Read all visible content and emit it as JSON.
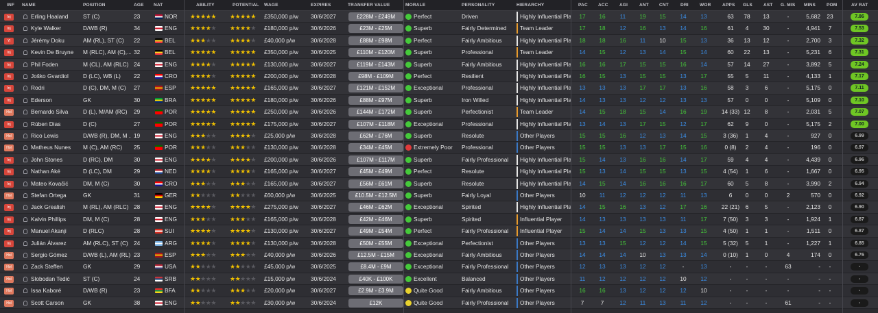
{
  "headers": {
    "inf": "INF",
    "name": "NAME",
    "position": "POSITION",
    "age": "AGE",
    "nat": "NAT",
    "ability": "ABILITY",
    "potential": "POTENTIAL",
    "wage": "WAGE",
    "expires": "EXPIRES",
    "transfer_value": "TRANSFER VALUE",
    "morale": "MORALE",
    "personality": "PERSONALITY",
    "hierarchy": "HIERARCHY",
    "pac": "PAC",
    "acc": "ACC",
    "agi": "AGI",
    "ant": "ANT",
    "cnt": "CNT",
    "dri": "DRI",
    "wor": "WOR",
    "apps": "APPS",
    "gls": "GLS",
    "ast": "AST",
    "gmis": "G. MIS",
    "mins": "MINS",
    "pom": "POM",
    "avrat": "AV RAT"
  },
  "colors": {
    "attr_green": "#45c93a",
    "attr_blue": "#3a8ee8",
    "attr_red": "#e03a3a",
    "attr_white": "#e6e6e6",
    "rating_green": "#6fc624",
    "rating_dark": "#1a1a1a",
    "hier_white": "#e6e6e6",
    "hier_orange": "#e89b2d",
    "hier_blue": "#3a79c6"
  },
  "players": [
    {
      "inf": "Inj",
      "name": "Erling Haaland",
      "position": "ST (C)",
      "age": "23",
      "nat": "NOR",
      "ability": 5,
      "potential": 5,
      "wage": "£350,000 p/w",
      "expires": "30/6/2027",
      "tv": "£228M - £249M",
      "morale": "Perfect",
      "personality": "Driven",
      "hierarchy": "Highly Influential Player",
      "hier": "white",
      "attrs": [
        "17",
        "16",
        "11",
        "19",
        "15",
        "14",
        "13"
      ],
      "apps": "63",
      "gls": "78",
      "ast": "13",
      "gmis": "-",
      "mins": "5,682",
      "pom": "23",
      "rating": "7.86",
      "rgreen": true
    },
    {
      "inf": "Inj",
      "name": "Kyle Walker",
      "position": "D/WB (R)",
      "age": "34",
      "nat": "ENG",
      "ability": 4,
      "potential": 4,
      "wage": "£180,000 p/w",
      "expires": "30/6/2026",
      "tv": "£23M - £25M",
      "morale": "Superb",
      "personality": "Fairly Determined",
      "hierarchy": "Team Leader",
      "hier": "orange",
      "attrs": [
        "17",
        "18",
        "12",
        "16",
        "13",
        "14",
        "16"
      ],
      "apps": "61",
      "gls": "4",
      "ast": "30",
      "gmis": "-",
      "mins": "4,941",
      "pom": "7",
      "rating": "7.53",
      "rgreen": true
    },
    {
      "inf": "Yl",
      "name": "Jérémy Doku",
      "position": "AM (RL), ST (C)",
      "age": "22",
      "nat": "BEL",
      "ability": 3,
      "potential": 4,
      "wage": "£40,000 p/w",
      "expires": "30/6/2028",
      "tv": "£88M - £98M",
      "morale": "Perfect",
      "personality": "Fairly Ambitious",
      "hierarchy": "Highly Influential Player",
      "hier": "white",
      "attrs": [
        "18",
        "18",
        "16",
        "11",
        "10",
        "15",
        "13"
      ],
      "apps": "36",
      "gls": "13",
      "ast": "12",
      "gmis": "-",
      "mins": "2,700",
      "pom": "3",
      "rating": "7.32",
      "rgreen": true
    },
    {
      "inf": "Inj",
      "name": "Kevin De Bruyne",
      "position": "M (RLC), AM (C),...",
      "age": "32",
      "nat": "BEL",
      "ability": 4.5,
      "potential": 4.5,
      "wage": "£350,000 p/w",
      "expires": "30/6/2025",
      "tv": "£110M - £120M",
      "morale": "Superb",
      "personality": "Professional",
      "hierarchy": "Team Leader",
      "hier": "orange",
      "attrs": [
        "14",
        "15",
        "12",
        "13",
        "14",
        "15",
        "14"
      ],
      "apps": "60",
      "gls": "22",
      "ast": "13",
      "gmis": "-",
      "mins": "5,231",
      "pom": "6",
      "rating": "7.31",
      "rgreen": true
    },
    {
      "inf": "Inj",
      "name": "Phil Foden",
      "position": "M (CL), AM (RLC)",
      "age": "24",
      "nat": "ENG",
      "ability": 4,
      "potential": 4.5,
      "wage": "£130,000 p/w",
      "expires": "30/6/2027",
      "tv": "£119M - £143M",
      "morale": "Superb",
      "personality": "Fairly Ambitious",
      "hierarchy": "Highly Influential Player",
      "hier": "white",
      "attrs": [
        "16",
        "16",
        "17",
        "15",
        "15",
        "16",
        "14"
      ],
      "apps": "57",
      "gls": "14",
      "ast": "27",
      "gmis": "-",
      "mins": "3,892",
      "pom": "5",
      "rating": "7.24",
      "rgreen": true
    },
    {
      "inf": "Inj",
      "name": "Joško Gvardiol",
      "position": "D (LC), WB (L)",
      "age": "22",
      "nat": "CRO",
      "ability": 4,
      "potential": 4.5,
      "wage": "£200,000 p/w",
      "expires": "30/6/2028",
      "tv": "£98M - £109M",
      "morale": "Perfect",
      "personality": "Resilient",
      "hierarchy": "Highly Influential Player",
      "hier": "white",
      "attrs": [
        "16",
        "15",
        "13",
        "15",
        "15",
        "13",
        "17"
      ],
      "apps": "55",
      "gls": "5",
      "ast": "11",
      "gmis": "-",
      "mins": "4,133",
      "pom": "1",
      "rating": "7.17",
      "rgreen": true
    },
    {
      "inf": "Inj",
      "name": "Rodri",
      "position": "D (C), DM, M (C)",
      "age": "27",
      "nat": "ESP",
      "ability": 4.5,
      "potential": 4.5,
      "wage": "£165,000 p/w",
      "expires": "30/6/2027",
      "tv": "£121M - £152M",
      "morale": "Exceptional",
      "personality": "Professional",
      "hierarchy": "Highly Influential Player",
      "hier": "white",
      "attrs": [
        "13",
        "13",
        "13",
        "17",
        "17",
        "13",
        "16"
      ],
      "apps": "58",
      "gls": "3",
      "ast": "6",
      "gmis": "-",
      "mins": "5,175",
      "pom": "0",
      "rating": "7.11",
      "rgreen": true
    },
    {
      "inf": "Inj",
      "name": "Ederson",
      "position": "GK",
      "age": "30",
      "nat": "BRA",
      "ability": 4.5,
      "potential": 4.5,
      "wage": "£180,000 p/w",
      "expires": "30/6/2026",
      "tv": "£88M - £97M",
      "morale": "Superb",
      "personality": "Iron Willed",
      "hierarchy": "Highly Influential Player",
      "hier": "white",
      "attrs": [
        "14",
        "13",
        "13",
        "12",
        "12",
        "13",
        "13"
      ],
      "apps": "57",
      "gls": "0",
      "ast": "0",
      "gmis": "-",
      "mins": "5,109",
      "pom": "0",
      "rating": "7.10",
      "rgreen": true
    },
    {
      "inf": "Hol",
      "name": "Bernardo Silva",
      "position": "D (L), M/AM (RC)",
      "age": "29",
      "nat": "POR",
      "ability": 4.5,
      "potential": 4.5,
      "wage": "£250,000 p/w",
      "expires": "30/6/2026",
      "tv": "£144M - £172M",
      "morale": "Superb",
      "personality": "Perfectionist",
      "hierarchy": "Team Leader",
      "hier": "orange",
      "attrs": [
        "14",
        "15",
        "18",
        "15",
        "14",
        "16",
        "19"
      ],
      "apps": "14 (33)",
      "gls": "12",
      "ast": "8",
      "gmis": "-",
      "mins": "2,031",
      "pom": "5",
      "rating": "7.07",
      "rgreen": true
    },
    {
      "inf": "Inj",
      "name": "Rúben Dias",
      "position": "D (C)",
      "age": "27",
      "nat": "POR",
      "ability": 4.5,
      "potential": 4.5,
      "wage": "£175,000 p/w",
      "expires": "30/6/2027",
      "tv": "£107M - £118M",
      "morale": "Exceptional",
      "personality": "Professional",
      "hierarchy": "Highly Influential Player",
      "hier": "white",
      "attrs": [
        "13",
        "14",
        "13",
        "17",
        "15",
        "12",
        "17"
      ],
      "apps": "62",
      "gls": "9",
      "ast": "0",
      "gmis": "-",
      "mins": "5,175",
      "pom": "2",
      "rating": "7.00",
      "rgreen": true
    },
    {
      "inf": "Hol",
      "name": "Rico Lewis",
      "position": "D/WB (R), DM, M ...",
      "age": "19",
      "nat": "ENG",
      "ability": 2.5,
      "potential": 4,
      "wage": "£25,000 p/w",
      "expires": "30/6/2028",
      "tv": "£62M - £76M",
      "morale": "Superb",
      "personality": "Resolute",
      "hierarchy": "Other Players",
      "hier": "blue",
      "attrs": [
        "15",
        "15",
        "16",
        "12",
        "13",
        "14",
        "15"
      ],
      "apps": "3 (36)",
      "gls": "1",
      "ast": "4",
      "gmis": "-",
      "mins": "927",
      "pom": "0",
      "rating": "6.99",
      "rgreen": false
    },
    {
      "inf": "Hol",
      "name": "Matheus Nunes",
      "position": "M (C), AM (RC)",
      "age": "25",
      "nat": "POR",
      "ability": 3,
      "potential": 3,
      "wage": "£130,000 p/w",
      "expires": "30/6/2028",
      "tv": "£34M - £45M",
      "morale": "Extremely Poor",
      "personality": "Professional",
      "hierarchy": "Other Players",
      "hier": "blue",
      "attrs": [
        "15",
        "15",
        "13",
        "13",
        "17",
        "15",
        "16"
      ],
      "apps": "0 (8)",
      "gls": "2",
      "ast": "4",
      "gmis": "-",
      "mins": "196",
      "pom": "0",
      "rating": "6.97",
      "rgreen": false
    },
    {
      "inf": "Inj",
      "name": "John Stones",
      "position": "D (RC), DM",
      "age": "30",
      "nat": "ENG",
      "ability": 4,
      "potential": 4,
      "wage": "£200,000 p/w",
      "expires": "30/6/2026",
      "tv": "£107M - £117M",
      "morale": "Superb",
      "personality": "Fairly Professional",
      "hierarchy": "Highly Influential Player",
      "hier": "white",
      "attrs": [
        "15",
        "14",
        "13",
        "16",
        "16",
        "14",
        "17"
      ],
      "apps": "59",
      "gls": "4",
      "ast": "4",
      "gmis": "-",
      "mins": "4,439",
      "pom": "0",
      "rating": "6.96",
      "rgreen": false
    },
    {
      "inf": "Inj",
      "name": "Nathan Aké",
      "position": "D (LC), DM",
      "age": "29",
      "nat": "NED",
      "ability": 3.5,
      "potential": 3.5,
      "wage": "£165,000 p/w",
      "expires": "30/6/2027",
      "tv": "£45M - £49M",
      "morale": "Perfect",
      "personality": "Resolute",
      "hierarchy": "Highly Influential Player",
      "hier": "white",
      "attrs": [
        "15",
        "13",
        "14",
        "15",
        "15",
        "13",
        "15"
      ],
      "apps": "4 (54)",
      "gls": "1",
      "ast": "6",
      "gmis": "-",
      "mins": "1,667",
      "pom": "0",
      "rating": "6.95",
      "rgreen": false
    },
    {
      "inf": "Inj",
      "name": "Mateo Kovačić",
      "position": "DM, M (C)",
      "age": "30",
      "nat": "CRO",
      "ability": 3,
      "potential": 3,
      "wage": "£165,000 p/w",
      "expires": "30/6/2027",
      "tv": "£56M - £61M",
      "morale": "Superb",
      "personality": "Resolute",
      "hierarchy": "Highly Influential Player",
      "hier": "white",
      "attrs": [
        "14",
        "15",
        "14",
        "16",
        "16",
        "16",
        "17"
      ],
      "apps": "60",
      "gls": "5",
      "ast": "8",
      "gmis": "-",
      "mins": "3,990",
      "pom": "2",
      "rating": "6.94",
      "rgreen": false
    },
    {
      "inf": "Hol",
      "name": "Stefan Ortega",
      "position": "GK",
      "age": "31",
      "nat": "GER",
      "ability": 2,
      "potential": 2,
      "wage": "£60,000 p/w",
      "expires": "30/6/2025",
      "tv": "£10.5M - £12.5M",
      "morale": "Superb",
      "personality": "Fairly Loyal",
      "hierarchy": "Other Players",
      "hier": "blue",
      "attrs": [
        "10",
        "11",
        "12",
        "12",
        "12",
        "11",
        "13"
      ],
      "apps": "6",
      "gls": "0",
      "ast": "0",
      "gmis": "2",
      "mins": "570",
      "pom": "0",
      "rating": "6.92",
      "rgreen": false
    },
    {
      "inf": "Inj",
      "name": "Jack Grealish",
      "position": "M (RL), AM (RLC)",
      "age": "28",
      "nat": "ENG",
      "ability": 3.5,
      "potential": 3.5,
      "wage": "£275,000 p/w",
      "expires": "30/6/2027",
      "tv": "£46M - £62M",
      "morale": "Exceptional",
      "personality": "Spirited",
      "hierarchy": "Highly Influential Player",
      "hier": "white",
      "attrs": [
        "14",
        "15",
        "16",
        "13",
        "12",
        "17",
        "16"
      ],
      "apps": "22 (21)",
      "gls": "6",
      "ast": "5",
      "gmis": "-",
      "mins": "2,123",
      "pom": "0",
      "rating": "6.90",
      "rgreen": false
    },
    {
      "inf": "Inj",
      "name": "Kalvin Phillips",
      "position": "DM, M (C)",
      "age": "28",
      "nat": "ENG",
      "ability": 3,
      "potential": 3,
      "wage": "£165,000 p/w",
      "expires": "30/6/2028",
      "tv": "£42M - £46M",
      "morale": "Superb",
      "personality": "Spirited",
      "hierarchy": "Influential Player",
      "hier": "orange",
      "attrs": [
        "14",
        "13",
        "13",
        "13",
        "13",
        "11",
        "17"
      ],
      "apps": "7 (50)",
      "gls": "3",
      "ast": "3",
      "gmis": "-",
      "mins": "1,924",
      "pom": "1",
      "rating": "6.87",
      "rgreen": false
    },
    {
      "inf": "Inj",
      "name": "Manuel Akanji",
      "position": "D (RLC)",
      "age": "28",
      "nat": "SUI",
      "ability": 3.5,
      "potential": 3.5,
      "wage": "£130,000 p/w",
      "expires": "30/6/2027",
      "tv": "£49M - £54M",
      "morale": "Perfect",
      "personality": "Fairly Professional",
      "hierarchy": "Influential Player",
      "hier": "orange",
      "attrs": [
        "15",
        "14",
        "14",
        "15",
        "13",
        "13",
        "15"
      ],
      "apps": "4 (50)",
      "gls": "1",
      "ast": "1",
      "gmis": "-",
      "mins": "1,511",
      "pom": "0",
      "rating": "6.87",
      "rgreen": false
    },
    {
      "inf": "Inj",
      "name": "Julián Álvarez",
      "position": "AM (RLC), ST (C)",
      "age": "24",
      "nat": "ARG",
      "ability": 3.5,
      "potential": 3.5,
      "wage": "£130,000 p/w",
      "expires": "30/6/2028",
      "tv": "£50M - £55M",
      "morale": "Exceptional",
      "personality": "Perfectionist",
      "hierarchy": "Other Players",
      "hier": "blue",
      "attrs": [
        "13",
        "13",
        "15",
        "12",
        "12",
        "14",
        "15"
      ],
      "apps": "5 (32)",
      "gls": "5",
      "ast": "1",
      "gmis": "-",
      "mins": "1,227",
      "pom": "1",
      "rating": "6.85",
      "rgreen": false
    },
    {
      "inf": "Hol",
      "name": "Sergio Gómez",
      "position": "D/WB (L), AM (RL)",
      "age": "23",
      "nat": "ESP",
      "ability": 2.5,
      "potential": 3,
      "wage": "£40,000 p/w",
      "expires": "30/6/2026",
      "tv": "£12.5M - £15M",
      "morale": "Exceptional",
      "personality": "Fairly Ambitious",
      "hierarchy": "Other Players",
      "hier": "blue",
      "attrs": [
        "14",
        "14",
        "14",
        "10",
        "13",
        "13",
        "14"
      ],
      "apps": "0 (10)",
      "gls": "1",
      "ast": "0",
      "gmis": "4",
      "mins": "174",
      "pom": "0",
      "rating": "6.76",
      "rgreen": false
    },
    {
      "inf": "Hol",
      "name": "Zack Steffen",
      "position": "GK",
      "age": "29",
      "nat": "USA",
      "ability": 2,
      "potential": 2,
      "wage": "£45,000 p/w",
      "expires": "30/6/2025",
      "tv": "£8.4M - £9M",
      "morale": "Exceptional",
      "personality": "Fairly Professional",
      "hierarchy": "Other Players",
      "hier": "blue",
      "attrs": [
        "12",
        "13",
        "13",
        "12",
        "12",
        "-",
        "13"
      ],
      "apps": "-",
      "gls": "-",
      "ast": "-",
      "gmis": "63",
      "mins": "-",
      "pom": "-",
      "rating": "-",
      "rgreen": false
    },
    {
      "inf": "Hol",
      "name": "Slobodan Tedić",
      "position": "ST (C)",
      "age": "24",
      "nat": "SRB",
      "ability": 1.5,
      "potential": 2,
      "wage": "£15,000 p/w",
      "expires": "30/6/2024",
      "tv": "£40K - £100K",
      "morale": "Excellent",
      "personality": "Balanced",
      "hierarchy": "Other Players",
      "hier": "blue",
      "attrs": [
        "11",
        "12",
        "12",
        "12",
        "12",
        "10",
        "12"
      ],
      "apps": "-",
      "gls": "-",
      "ast": "-",
      "gmis": "-",
      "mins": "-",
      "pom": "-",
      "rating": "-",
      "rgreen": false
    },
    {
      "inf": "Hol",
      "name": "Issa Kaboré",
      "position": "D/WB (R)",
      "age": "23",
      "nat": "BFA",
      "ability": 2,
      "potential": 2.5,
      "wage": "£20,000 p/w",
      "expires": "30/6/2027",
      "tv": "£2.9M - £3.9M",
      "morale": "Quite Good",
      "personality": "Fairly Ambitious",
      "hierarchy": "Other Players",
      "hier": "blue",
      "attrs": [
        "16",
        "16",
        "13",
        "12",
        "12",
        "12",
        "10"
      ],
      "apps": "-",
      "gls": "-",
      "ast": "-",
      "gmis": "-",
      "mins": "-",
      "pom": "-",
      "rating": "-",
      "rgreen": false
    },
    {
      "inf": "Hol",
      "name": "Scott Carson",
      "position": "GK",
      "age": "38",
      "nat": "ENG",
      "ability": 1.5,
      "potential": 1.5,
      "wage": "£30,000 p/w",
      "expires": "30/6/2024",
      "tv": "£12K",
      "morale": "Quite Good",
      "personality": "Fairly Professional",
      "hierarchy": "Other Players",
      "hier": "blue",
      "attrs": [
        "7",
        "7",
        "12",
        "11",
        "13",
        "11",
        "12"
      ],
      "apps": "-",
      "gls": "-",
      "ast": "-",
      "gmis": "61",
      "mins": "-",
      "pom": "-",
      "rating": "-",
      "rgreen": false
    }
  ]
}
